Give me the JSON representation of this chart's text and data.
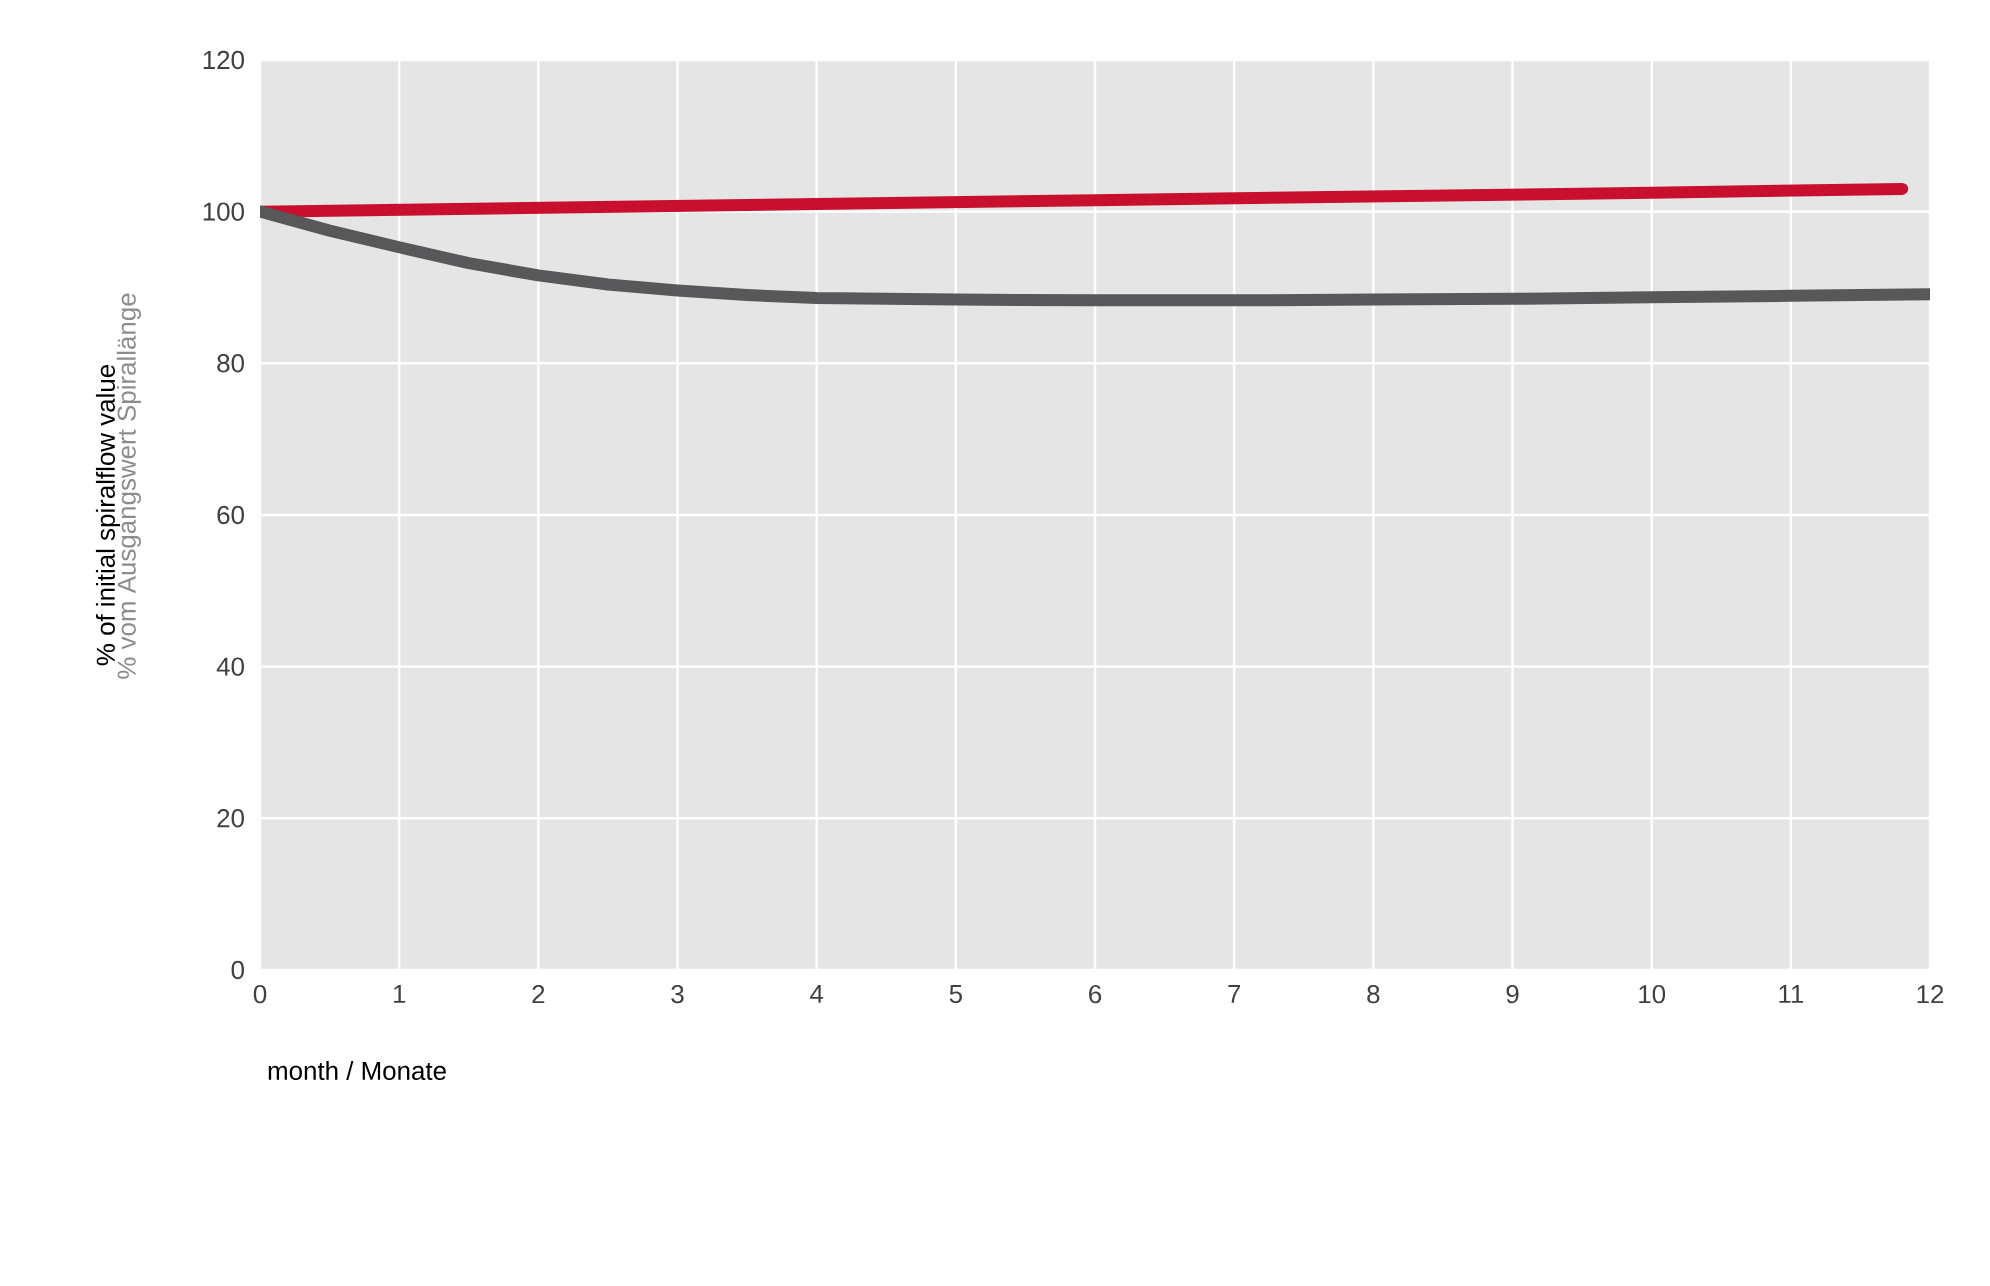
{
  "chart_data": {
    "type": "line",
    "xlabel": "month / Monate",
    "ylabel": "% of initial spiralflow value",
    "annotations": [
      "% vom Ausgangswert Spirallänge"
    ],
    "series": [
      {
        "color": "#c8102e",
        "x": [
          0,
          2,
          4,
          6,
          8,
          10,
          11.8
        ],
        "values": [
          100,
          100.5,
          101,
          101.5,
          102,
          102.5,
          103
        ]
      },
      {
        "color": "#58585a",
        "x": [
          0,
          0.5,
          1,
          1.5,
          2,
          2.5,
          3,
          3.5,
          4,
          5,
          6,
          7,
          8,
          9,
          10,
          11,
          12
        ],
        "values": [
          100,
          97.5,
          95.3,
          93.2,
          91.6,
          90.4,
          89.6,
          89,
          88.6,
          88.4,
          88.3,
          88.3,
          88.4,
          88.5,
          88.7,
          88.9,
          89.1
        ]
      }
    ],
    "xlim": [
      0,
      12
    ],
    "ylim": [
      0,
      120
    ],
    "xticks": [
      0,
      1,
      2,
      3,
      4,
      5,
      6,
      7,
      8,
      9,
      10,
      11,
      12
    ],
    "yticks": [
      0,
      20,
      40,
      60,
      80,
      100,
      120
    ],
    "grid": true,
    "line_style": "solid",
    "marker": "none"
  }
}
